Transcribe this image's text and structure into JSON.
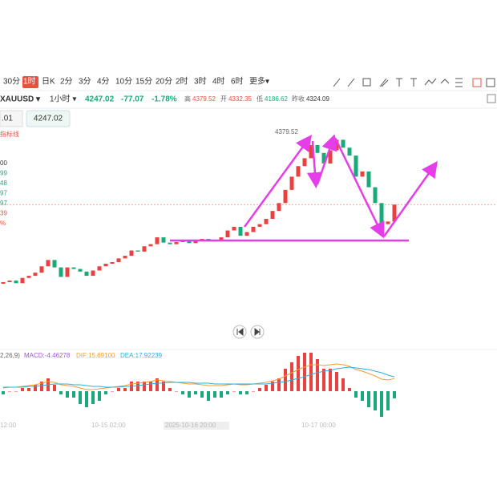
{
  "toolbar": {
    "periods": [
      "30分",
      "1时",
      "日K",
      "2分",
      "3分",
      "4分",
      "10分",
      "15分",
      "20分",
      "2时",
      "3时",
      "4时",
      "6时",
      "更多▾"
    ]
  },
  "quote": {
    "symbol": "XAUUSD ▾",
    "interval": "1小时 ▾",
    "price": 4247.02,
    "change": -77.07,
    "change_pct": "-1.78%",
    "high_label": "高",
    "high": 4379.52,
    "open_label": "开",
    "open": 4332.35,
    "low_label": "低",
    "low": 4186.62,
    "prev_label": "昨收",
    "prev_close": 4324.09
  },
  "side": {
    "input": ".01",
    "price_box": "4247.02",
    "indicator": "指标线",
    "values": [
      "00",
      "99",
      "48",
      "97",
      "97",
      "39",
      "%"
    ]
  },
  "chart_data": {
    "type": "candlestick",
    "annotation": "4379.52",
    "open": [
      4097,
      4100,
      4103,
      4098,
      4108,
      4112,
      4118,
      4130,
      4142,
      4128,
      4110,
      4128,
      4125,
      4120,
      4112,
      4122,
      4130,
      4135,
      4138,
      4145,
      4150,
      4160,
      4158,
      4168,
      4172,
      4185,
      4175,
      4172,
      4176,
      4178,
      4174,
      4180,
      4182,
      4178,
      4180,
      4185,
      4198,
      4205,
      4188,
      4195,
      4205,
      4210,
      4220,
      4235,
      4250,
      4275,
      4300,
      4320,
      4335,
      4360,
      4345,
      4325,
      4350,
      4370,
      4355,
      4340,
      4300,
      4310,
      4280,
      4250,
      4210,
      4215
    ],
    "close": [
      4100,
      4103,
      4098,
      4108,
      4112,
      4118,
      4130,
      4142,
      4128,
      4110,
      4128,
      4125,
      4120,
      4112,
      4122,
      4130,
      4135,
      4138,
      4145,
      4150,
      4160,
      4158,
      4168,
      4172,
      4185,
      4175,
      4172,
      4176,
      4178,
      4174,
      4180,
      4182,
      4178,
      4180,
      4185,
      4198,
      4205,
      4188,
      4195,
      4205,
      4210,
      4220,
      4235,
      4250,
      4275,
      4300,
      4320,
      4335,
      4360,
      4345,
      4325,
      4350,
      4370,
      4355,
      4340,
      4300,
      4310,
      4280,
      4250,
      4210,
      4215,
      4247.02
    ],
    "x_labels": [
      "12:00",
      "10-15 02:00",
      "2025-10-16 20:00",
      "10-17 00:00"
    ]
  },
  "macd": {
    "params": "2,26,9)",
    "macd_label": "MACD:-4.46278",
    "dif_label": "DIF:15.69100",
    "dea_label": "DEA:17.92239",
    "dif": [
      4,
      5,
      5,
      6,
      7,
      8,
      10,
      12,
      11,
      8,
      7,
      6,
      4,
      2,
      2,
      3,
      4,
      5,
      6,
      7,
      9,
      10,
      11,
      12,
      14,
      13,
      12,
      11,
      10,
      9,
      9,
      8,
      7,
      7,
      7,
      8,
      9,
      8,
      8,
      9,
      10,
      11,
      13,
      15,
      19,
      23,
      27,
      30,
      33,
      33,
      32,
      33,
      34,
      33,
      31,
      27,
      25,
      22,
      19,
      15,
      14,
      15.69
    ],
    "dea": [
      5,
      5,
      5,
      5,
      6,
      6,
      7,
      8,
      9,
      9,
      9,
      8,
      8,
      7,
      6,
      6,
      5,
      5,
      5,
      6,
      6,
      7,
      8,
      9,
      10,
      10,
      11,
      11,
      11,
      11,
      10,
      10,
      10,
      9,
      9,
      9,
      9,
      9,
      9,
      9,
      9,
      9,
      10,
      11,
      12,
      14,
      16,
      18,
      21,
      23,
      25,
      26,
      28,
      29,
      30,
      29,
      28,
      27,
      25,
      23,
      20,
      17.92
    ],
    "hist": [
      -2,
      0,
      0,
      2,
      2,
      4,
      6,
      8,
      4,
      -2,
      -4,
      -4,
      -8,
      -10,
      -8,
      -6,
      -2,
      0,
      2,
      2,
      6,
      6,
      6,
      6,
      8,
      6,
      2,
      0,
      -2,
      -4,
      -2,
      -4,
      -6,
      -4,
      -4,
      -2,
      0,
      -2,
      -2,
      0,
      2,
      4,
      6,
      8,
      14,
      18,
      22,
      24,
      24,
      20,
      14,
      14,
      12,
      8,
      2,
      -4,
      -6,
      -10,
      -12,
      -16,
      -12,
      -4.46
    ]
  }
}
